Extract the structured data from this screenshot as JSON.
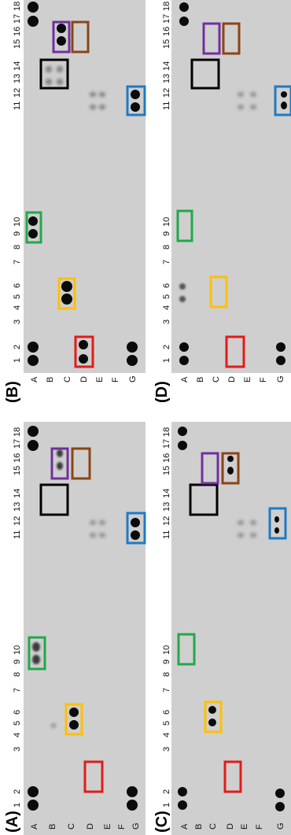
{
  "panels": [
    {
      "label": "(A)",
      "membrane": "A"
    },
    {
      "label": "(B)",
      "membrane": "B"
    },
    {
      "label": "(C)",
      "membrane": "C"
    },
    {
      "label": "(D)",
      "membrane": "D"
    }
  ],
  "column_ticks": [
    "1",
    "2",
    "3",
    "4",
    "5",
    "6",
    "7",
    "8",
    "9",
    "10",
    "11",
    "12",
    "13",
    "14",
    "15",
    "16",
    "17",
    "18"
  ],
  "row_ticks": [
    "A",
    "B",
    "C",
    "D",
    "E",
    "F",
    "G"
  ],
  "colors": {
    "membrane_background": "#cfcfcf",
    "spot": "#0b0b0b",
    "box_red": "#e21b1b",
    "box_yellow": "#ffc000",
    "box_green": "#21a84a",
    "box_black": "#000000",
    "box_purple": "#7030a0",
    "box_brown": "#8b4513",
    "box_blue": "#1f7ac4"
  },
  "highlight_boxes": [
    {
      "panel": "A",
      "color": "box_red",
      "label": "red"
    },
    {
      "panel": "A",
      "color": "box_yellow",
      "label": "yellow"
    },
    {
      "panel": "A",
      "color": "box_green",
      "label": "green"
    },
    {
      "panel": "A",
      "color": "box_black",
      "label": "black"
    },
    {
      "panel": "A",
      "color": "box_purple",
      "label": "purple"
    },
    {
      "panel": "A",
      "color": "box_brown",
      "label": "brown"
    },
    {
      "panel": "A",
      "color": "box_blue",
      "label": "blue"
    },
    {
      "panel": "B",
      "color": "box_red",
      "label": "red"
    },
    {
      "panel": "B",
      "color": "box_yellow",
      "label": "yellow"
    },
    {
      "panel": "B",
      "color": "box_green",
      "label": "green"
    },
    {
      "panel": "B",
      "color": "box_black",
      "label": "black"
    },
    {
      "panel": "B",
      "color": "box_purple",
      "label": "purple"
    },
    {
      "panel": "B",
      "color": "box_brown",
      "label": "brown"
    },
    {
      "panel": "B",
      "color": "box_blue",
      "label": "blue"
    },
    {
      "panel": "C",
      "color": "box_red",
      "label": "red"
    },
    {
      "panel": "C",
      "color": "box_yellow",
      "label": "yellow"
    },
    {
      "panel": "C",
      "color": "box_green",
      "label": "green"
    },
    {
      "panel": "C",
      "color": "box_black",
      "label": "black"
    },
    {
      "panel": "C",
      "color": "box_purple",
      "label": "purple"
    },
    {
      "panel": "C",
      "color": "box_brown",
      "label": "brown"
    },
    {
      "panel": "C",
      "color": "box_blue",
      "label": "blue"
    },
    {
      "panel": "D",
      "color": "box_red",
      "label": "red"
    },
    {
      "panel": "D",
      "color": "box_yellow",
      "label": "yellow"
    },
    {
      "panel": "D",
      "color": "box_green",
      "label": "green"
    },
    {
      "panel": "D",
      "color": "box_black",
      "label": "black"
    },
    {
      "panel": "D",
      "color": "box_purple",
      "label": "purple"
    },
    {
      "panel": "D",
      "color": "box_brown",
      "label": "brown"
    },
    {
      "panel": "D",
      "color": "box_blue",
      "label": "blue"
    }
  ]
}
